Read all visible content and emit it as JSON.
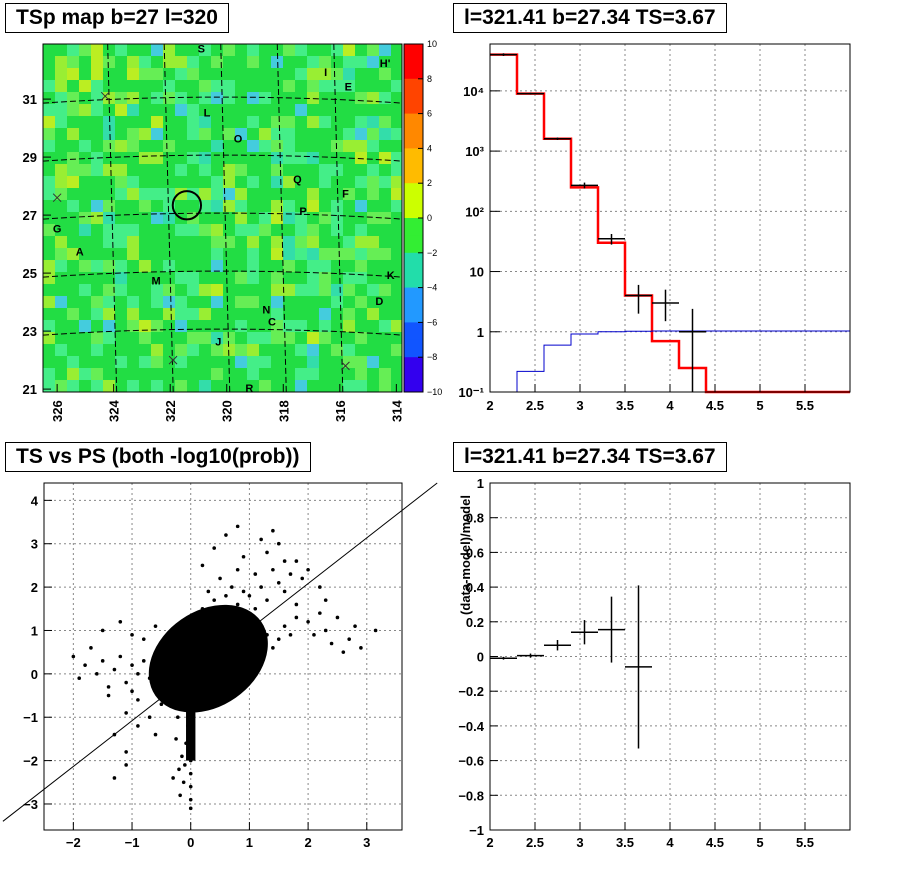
{
  "chart_data": [
    {
      "panel": "tsmap",
      "type": "heatmap",
      "title": "TSp map b=27 l=320",
      "x_ticks": [
        "326",
        "324",
        "322",
        "320",
        "318",
        "316",
        "314"
      ],
      "y_ticks": [
        "31",
        "29",
        "27",
        "25",
        "23",
        "21"
      ],
      "xlim": [
        326.5,
        313.8
      ],
      "ylim": [
        20.9,
        32.9
      ],
      "colorbar": {
        "min": -10,
        "max": 10,
        "ticks": [
          "10",
          "8",
          "6",
          "4",
          "2",
          "0",
          "−2",
          "−4",
          "−6",
          "−8",
          "−10"
        ]
      },
      "source_labels": [
        {
          "text": "S",
          "l": 320.9,
          "b": 32.6
        },
        {
          "text": "I",
          "l": 316.5,
          "b": 31.8
        },
        {
          "text": "H'",
          "l": 314.4,
          "b": 32.1
        },
        {
          "text": "E",
          "l": 315.7,
          "b": 31.3
        },
        {
          "text": "L",
          "l": 320.7,
          "b": 30.4
        },
        {
          "text": "O",
          "l": 319.6,
          "b": 29.5
        },
        {
          "text": "Q",
          "l": 317.5,
          "b": 28.1
        },
        {
          "text": "F",
          "l": 315.8,
          "b": 27.6
        },
        {
          "text": "P",
          "l": 317.3,
          "b": 27.0
        },
        {
          "text": "G",
          "l": 326.0,
          "b": 26.4
        },
        {
          "text": "A",
          "l": 325.2,
          "b": 25.6
        },
        {
          "text": "K",
          "l": 314.2,
          "b": 24.8
        },
        {
          "text": "M",
          "l": 322.5,
          "b": 24.6
        },
        {
          "text": "D",
          "l": 314.6,
          "b": 23.9
        },
        {
          "text": "N",
          "l": 318.6,
          "b": 23.6
        },
        {
          "text": "C",
          "l": 318.4,
          "b": 23.2
        },
        {
          "text": "J",
          "l": 320.3,
          "b": 22.5
        },
        {
          "text": "R",
          "l": 319.2,
          "b": 20.9
        }
      ],
      "markers": [
        {
          "symbol": "x",
          "l": 326.0,
          "b": 27.6
        },
        {
          "symbol": "x",
          "l": 324.3,
          "b": 31.1
        },
        {
          "symbol": "x",
          "l": 321.9,
          "b": 22.0
        },
        {
          "symbol": "x",
          "l": 315.8,
          "b": 21.8
        }
      ],
      "circle": {
        "l": 321.41,
        "b": 27.34,
        "r_deg": 0.5
      }
    },
    {
      "panel": "spectrum",
      "type": "line",
      "title": "l=321.41 b=27.34 TS=3.67",
      "yscale": "log",
      "xlim": [
        2,
        6
      ],
      "ylim": [
        0.1,
        60000
      ],
      "x_ticks": [
        "2",
        "2.5",
        "3",
        "3.5",
        "4",
        "4.5",
        "5",
        "5.5"
      ],
      "y_ticks": [
        "10⁻¹",
        "1",
        "10",
        "10²",
        "10³",
        "10⁴"
      ],
      "y_tick_values": [
        0.1,
        1,
        10,
        100,
        1000,
        10000
      ],
      "series": [
        {
          "color": "#ff0000",
          "edges": [
            2.0,
            2.3,
            2.6,
            2.9,
            3.2,
            3.5,
            3.8,
            4.1,
            4.4,
            6.0
          ],
          "values": [
            40000,
            9000,
            1600,
            250,
            30,
            4,
            0.7,
            0.25,
            0.1
          ]
        },
        {
          "color": "#0000cc",
          "edges": [
            2.0,
            2.3,
            2.6,
            2.9,
            3.2,
            3.5,
            3.8,
            4.1,
            4.4,
            6.0
          ],
          "values": [
            0.05,
            0.22,
            0.6,
            0.92,
            1.0,
            1.02,
            1.03,
            1.03,
            1.03
          ]
        },
        {
          "color": "#000000",
          "type": "points",
          "points": [
            {
              "x": 2.15,
              "y": 40000,
              "xerr": 0.15,
              "ylo": 38000,
              "yhi": 42000
            },
            {
              "x": 2.45,
              "y": 9000,
              "xerr": 0.15,
              "ylo": 8700,
              "yhi": 9300
            },
            {
              "x": 2.75,
              "y": 1600,
              "xerr": 0.15,
              "ylo": 1530,
              "yhi": 1680
            },
            {
              "x": 3.05,
              "y": 270,
              "xerr": 0.15,
              "ylo": 240,
              "yhi": 300
            },
            {
              "x": 3.35,
              "y": 35,
              "xerr": 0.15,
              "ylo": 28,
              "yhi": 42
            },
            {
              "x": 3.65,
              "y": 4,
              "xerr": 0.15,
              "ylo": 2,
              "yhi": 6
            },
            {
              "x": 3.95,
              "y": 3,
              "xerr": 0.15,
              "ylo": 1.5,
              "yhi": 5
            },
            {
              "x": 4.25,
              "y": 1.0,
              "xerr": 0.15,
              "ylo": 0.1,
              "yhi": 2.4
            }
          ]
        }
      ]
    },
    {
      "panel": "scatter",
      "type": "scatter",
      "title": "TS vs PS (both -log10(prob))",
      "xlim": [
        -2.5,
        3.6
      ],
      "ylim": [
        -3.6,
        4.4
      ],
      "x_ticks": [
        "−2",
        "−1",
        "0",
        "1",
        "2",
        "3"
      ],
      "x_tick_values": [
        -2,
        -1,
        0,
        1,
        2,
        3
      ],
      "y_ticks": [
        "−3",
        "−2",
        "−1",
        "0",
        "1",
        "2",
        "3",
        "4"
      ],
      "y_tick_values": [
        -3,
        -2,
        -1,
        0,
        1,
        2,
        3,
        4
      ],
      "diagonal": [
        [
          -3.2,
          -3.4
        ],
        [
          4.2,
          4.4
        ]
      ],
      "points": [
        [
          0.0,
          0.2
        ],
        [
          0.1,
          0.5
        ],
        [
          0.2,
          0.8
        ],
        [
          0.3,
          1.1
        ],
        [
          0.4,
          0.9
        ],
        [
          0.5,
          1.2
        ],
        [
          0.6,
          1.4
        ],
        [
          0.7,
          1.0
        ],
        [
          0.8,
          1.6
        ],
        [
          0.9,
          1.3
        ],
        [
          1.0,
          1.8
        ],
        [
          1.1,
          1.5
        ],
        [
          1.2,
          2.0
        ],
        [
          1.3,
          1.7
        ],
        [
          1.4,
          2.4
        ],
        [
          1.5,
          2.1
        ],
        [
          1.6,
          1.9
        ],
        [
          1.7,
          2.3
        ],
        [
          1.8,
          1.6
        ],
        [
          1.9,
          2.2
        ],
        [
          0.2,
          2.5
        ],
        [
          0.4,
          2.9
        ],
        [
          0.6,
          3.2
        ],
        [
          0.8,
          3.4
        ],
        [
          0.9,
          2.7
        ],
        [
          1.2,
          3.1
        ],
        [
          1.3,
          2.8
        ],
        [
          1.4,
          3.3
        ],
        [
          1.5,
          3.0
        ],
        [
          1.6,
          2.6
        ],
        [
          2.0,
          1.2
        ],
        [
          2.1,
          0.9
        ],
        [
          2.2,
          1.4
        ],
        [
          2.3,
          1.0
        ],
        [
          2.4,
          0.7
        ],
        [
          2.5,
          1.3
        ],
        [
          2.6,
          0.5
        ],
        [
          2.7,
          0.8
        ],
        [
          2.8,
          1.1
        ],
        [
          2.9,
          0.6
        ],
        [
          3.15,
          1.0
        ],
        [
          2.2,
          2.0
        ],
        [
          2.0,
          2.4
        ],
        [
          2.3,
          1.7
        ],
        [
          1.8,
          2.6
        ],
        [
          -0.1,
          0.3
        ],
        [
          -0.2,
          0.6
        ],
        [
          -0.3,
          0.2
        ],
        [
          -0.4,
          0.5
        ],
        [
          -0.5,
          0.1
        ],
        [
          -0.6,
          0.4
        ],
        [
          -0.7,
          -0.1
        ],
        [
          -0.8,
          0.3
        ],
        [
          -0.9,
          0.0
        ],
        [
          -1.0,
          0.2
        ],
        [
          -1.1,
          -0.2
        ],
        [
          -1.2,
          0.4
        ],
        [
          -1.3,
          0.1
        ],
        [
          -1.4,
          -0.3
        ],
        [
          -1.5,
          0.3
        ],
        [
          -1.6,
          0.0
        ],
        [
          -1.7,
          0.6
        ],
        [
          -1.8,
          0.2
        ],
        [
          -1.9,
          -0.1
        ],
        [
          -2.0,
          0.4
        ],
        [
          -1.2,
          1.2
        ],
        [
          -1.5,
          1.0
        ],
        [
          -1.0,
          0.9
        ],
        [
          -0.8,
          0.8
        ],
        [
          -0.6,
          1.1
        ],
        [
          -0.9,
          -0.6
        ],
        [
          -1.1,
          -0.9
        ],
        [
          -0.7,
          -1.0
        ],
        [
          -1.3,
          -1.4
        ],
        [
          -1.1,
          -1.8
        ],
        [
          -0.6,
          -1.4
        ],
        [
          -0.9,
          -1.2
        ],
        [
          -0.5,
          -0.7
        ],
        [
          -1.4,
          -0.5
        ],
        [
          -1.0,
          -0.4
        ],
        [
          0.0,
          -0.5
        ],
        [
          0.0,
          -0.8
        ],
        [
          0.0,
          -1.1
        ],
        [
          0.0,
          -1.4
        ],
        [
          0.0,
          -1.7
        ],
        [
          0.0,
          -2.0
        ],
        [
          0.0,
          -2.3
        ],
        [
          0.0,
          -2.6
        ],
        [
          0.0,
          -2.9
        ],
        [
          0.0,
          -3.1
        ],
        [
          -0.05,
          -1.2
        ],
        [
          -0.08,
          -1.6
        ],
        [
          -0.1,
          -2.1
        ],
        [
          -0.12,
          -2.5
        ],
        [
          -0.15,
          -1.9
        ],
        [
          -0.2,
          -2.2
        ],
        [
          -0.25,
          -1.5
        ],
        [
          -0.3,
          -2.4
        ],
        [
          -0.18,
          -2.8
        ],
        [
          -0.22,
          -1.0
        ],
        [
          -1.1,
          -2.1
        ],
        [
          -1.3,
          -2.4
        ],
        [
          0.1,
          -0.3
        ],
        [
          0.2,
          -0.1
        ],
        [
          0.3,
          0.0
        ],
        [
          0.4,
          0.2
        ],
        [
          0.5,
          0.3
        ],
        [
          0.6,
          0.1
        ],
        [
          0.7,
          0.4
        ],
        [
          0.8,
          0.2
        ],
        [
          0.9,
          0.6
        ],
        [
          1.0,
          0.4
        ],
        [
          1.1,
          0.7
        ],
        [
          1.2,
          0.5
        ],
        [
          1.3,
          0.9
        ],
        [
          1.4,
          0.6
        ],
        [
          1.5,
          0.8
        ],
        [
          1.6,
          1.1
        ],
        [
          1.7,
          0.9
        ],
        [
          1.8,
          1.3
        ],
        [
          0.3,
          1.9
        ],
        [
          0.5,
          2.2
        ],
        [
          0.7,
          2.0
        ],
        [
          0.9,
          1.9
        ],
        [
          1.1,
          2.3
        ],
        [
          0.2,
          1.5
        ],
        [
          0.4,
          1.7
        ],
        [
          0.6,
          1.8
        ],
        [
          0.1,
          1.2
        ],
        [
          0.8,
          2.4
        ]
      ]
    },
    {
      "panel": "residual",
      "type": "scatter",
      "title": "l=321.41 b=27.34 TS=3.67",
      "xlim": [
        2,
        6
      ],
      "ylim": [
        -1,
        1
      ],
      "ylabel": "(data-model)/model",
      "x_ticks": [
        "2",
        "2.5",
        "3",
        "3.5",
        "4",
        "4.5",
        "5",
        "5.5"
      ],
      "x_tick_values": [
        2,
        2.5,
        3,
        3.5,
        4,
        4.5,
        5,
        5.5
      ],
      "y_ticks": [
        "−1",
        "−0.8",
        "−0.6",
        "−0.4",
        "−0.2",
        "0",
        "0.2",
        "0.4",
        "0.6",
        "0.8",
        "1"
      ],
      "y_tick_values": [
        -1,
        -0.8,
        -0.6,
        -0.4,
        -0.2,
        0,
        0.2,
        0.4,
        0.6,
        0.8,
        1
      ],
      "points": [
        {
          "x": 2.15,
          "y": -0.01,
          "xerr": 0.15,
          "yerr": 0.008
        },
        {
          "x": 2.45,
          "y": 0.005,
          "xerr": 0.15,
          "yerr": 0.012
        },
        {
          "x": 2.75,
          "y": 0.065,
          "xerr": 0.15,
          "yerr": 0.03
        },
        {
          "x": 3.05,
          "y": 0.14,
          "xerr": 0.15,
          "yerr": 0.07
        },
        {
          "x": 3.35,
          "y": 0.155,
          "xerr": 0.15,
          "yerr": 0.19
        },
        {
          "x": 3.65,
          "y": -0.06,
          "xerr": 0.15,
          "yerr": 0.47
        }
      ]
    }
  ]
}
